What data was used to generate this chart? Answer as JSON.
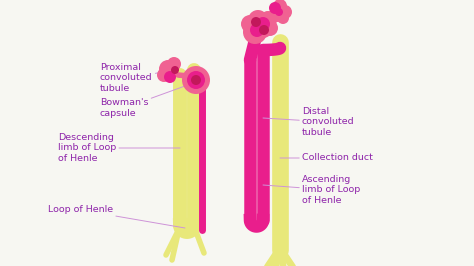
{
  "bg_color": "#f7f7f2",
  "pink_light": "#f06292",
  "pink_mid": "#e91e8c",
  "pink_dark": "#c2185b",
  "yellow_green": "#e8e87a",
  "label_color": "#8e24aa",
  "line_color": "#ce93d8",
  "labels": {
    "proximal_convoluted_tubule": "Proximal\nconvoluted\ntubule",
    "bowmans_capsule": "Bowman's\ncapsule",
    "descending_limb": "Descending\nlimb of Loop\nof Henle",
    "loop_of_henle": "Loop of Henle",
    "distal_convoluted_tubule": "Distal\nconvoluted\ntubule",
    "collection_duct": "Collection duct",
    "ascending_limb": "Ascending\nlimb of Loop\nof Henle"
  },
  "font_size": 6.8,
  "figsize": [
    4.74,
    2.66
  ],
  "dpi": 100
}
